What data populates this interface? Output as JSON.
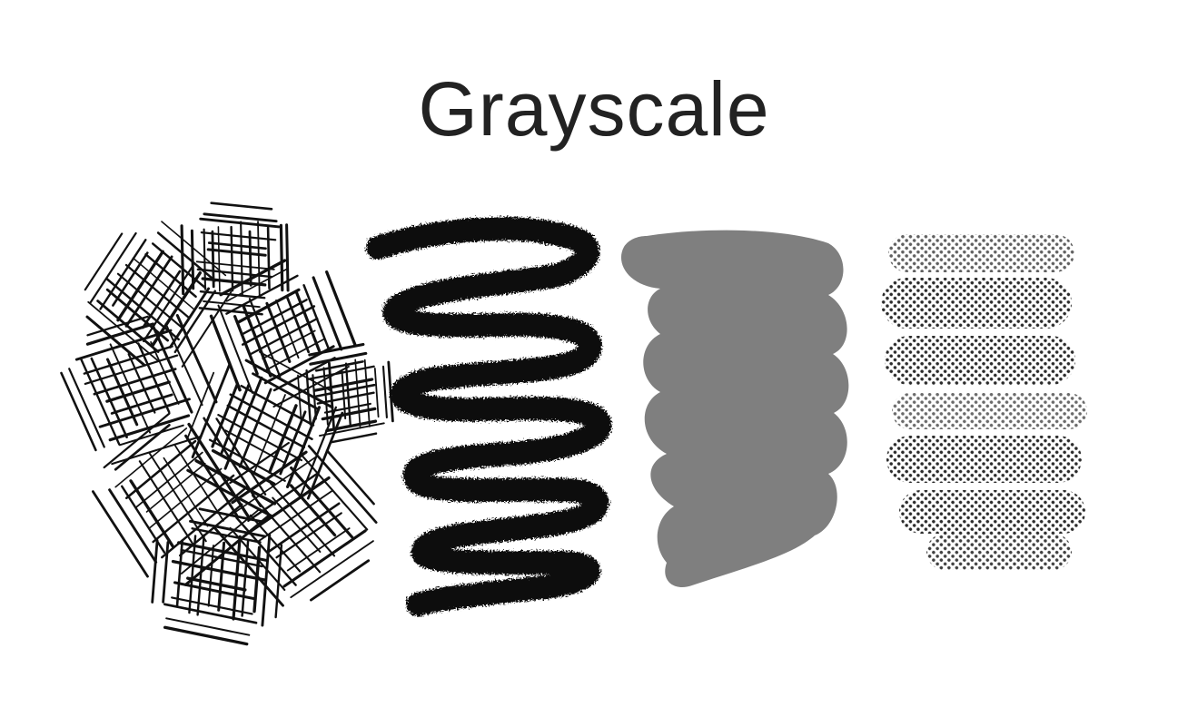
{
  "title": "Grayscale",
  "colors": {
    "ink": "#111111",
    "title": "#222222",
    "flat_fill": "#7f7f7f",
    "halftone_dot": "#2a2a2a",
    "background": "#ffffff"
  },
  "swatches": [
    {
      "name": "crosshatch-brush-stroke",
      "style": "crosshatch",
      "color": "#111111"
    },
    {
      "name": "charcoal-brush-stroke",
      "style": "rough-zigzag",
      "color": "#111111"
    },
    {
      "name": "flat-gray-brush-stroke",
      "style": "solid",
      "color": "#7f7f7f"
    },
    {
      "name": "halftone-brush-stroke",
      "style": "halftone-dots",
      "color": "#2a2a2a"
    }
  ]
}
